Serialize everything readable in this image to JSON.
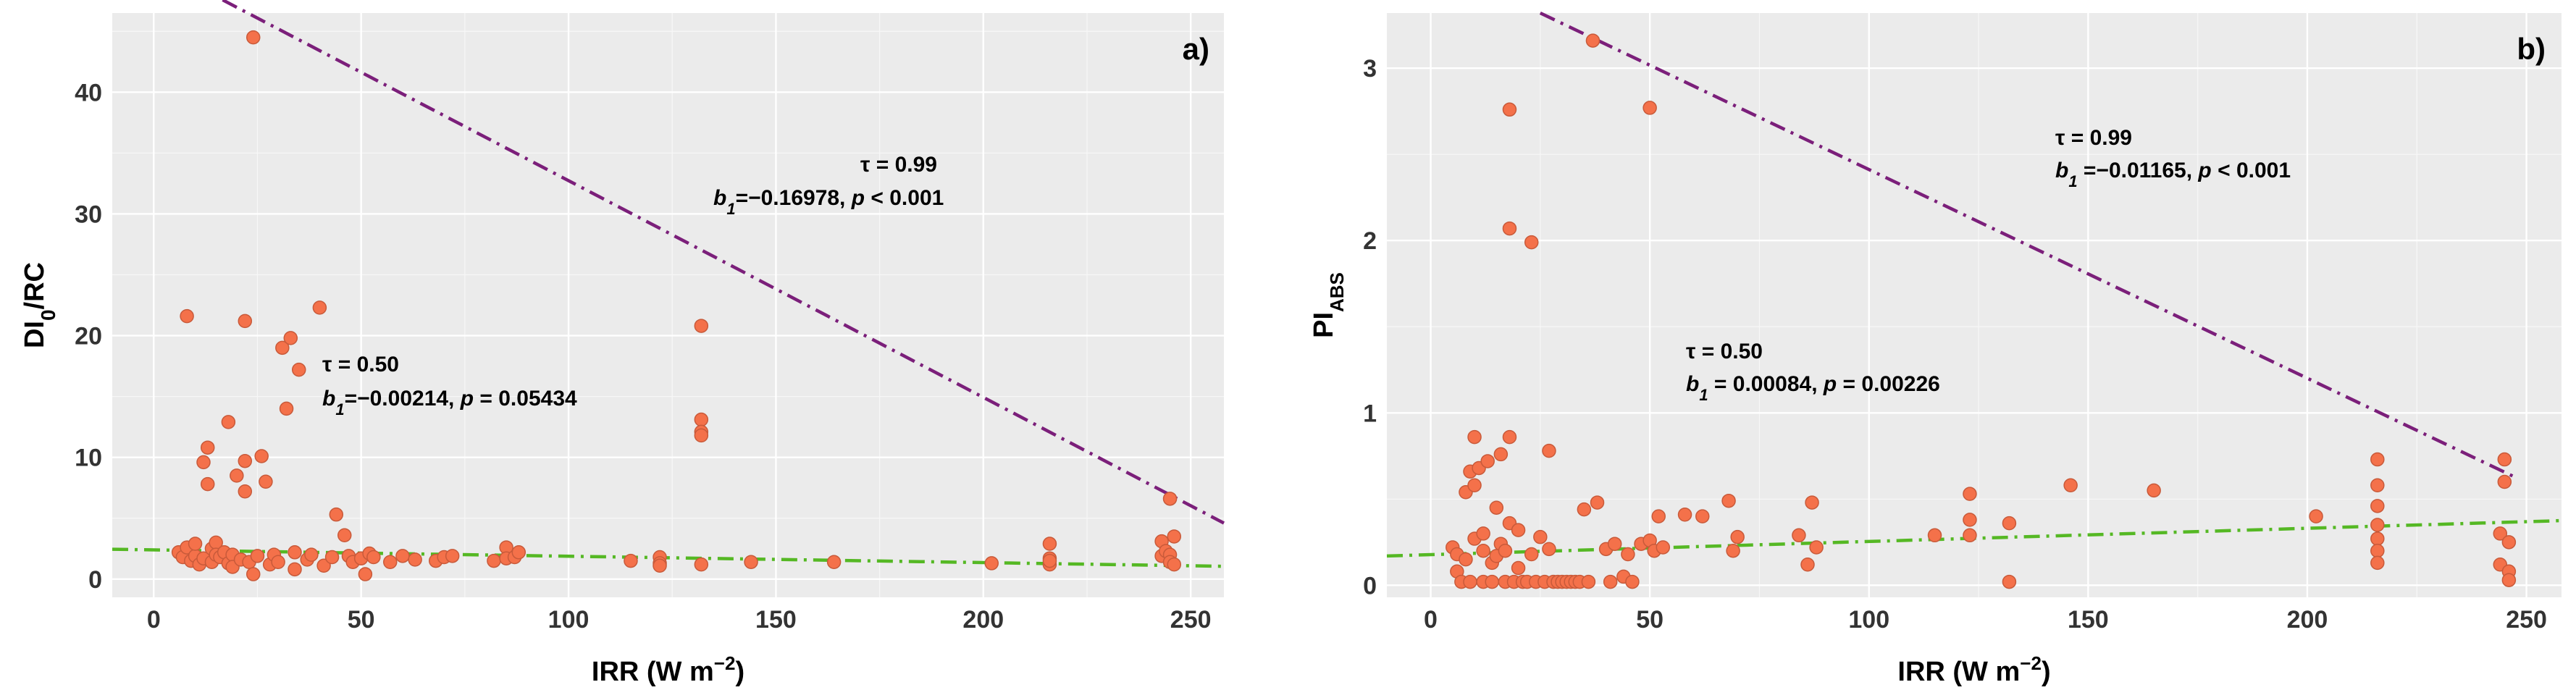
{
  "chart_data": [
    {
      "type": "scatter",
      "panel_label": "a)",
      "xlabel_html": "IRR (W m<tspan baseline-shift=\"super\" font-size=\"26\">−2</tspan>)",
      "xlabel": "IRR (W m−2)",
      "ylabel": "DI0/RC",
      "xlim": [
        -10,
        258
      ],
      "ylim": [
        -1.5,
        46.5
      ],
      "xticks": [
        0,
        50,
        100,
        150,
        200,
        250
      ],
      "yticks": [
        0,
        10,
        20,
        30,
        40
      ],
      "tau_high": {
        "label": "τ = 0.99",
        "coef_text": "=−0.16978, ",
        "p_text": " < 0.001",
        "line": {
          "x0": 3,
          "y0": 50.0,
          "x1": 258,
          "y1": 4.6,
          "color": "#7b1f7a"
        }
      },
      "tau_mid": {
        "label": "τ = 0.50",
        "coef_text": "=−0.00214, ",
        "p_text": " = 0.05434",
        "line": {
          "x0": -10,
          "y0": 2.45,
          "x1": 258,
          "y1": 1.05,
          "color": "#55b824"
        }
      },
      "points": [
        [
          6,
          2.2
        ],
        [
          7,
          1.8
        ],
        [
          8,
          21.6
        ],
        [
          8,
          2.6
        ],
        [
          9,
          1.5
        ],
        [
          10,
          1.9
        ],
        [
          10,
          2.9
        ],
        [
          11,
          1.2
        ],
        [
          12,
          1.7
        ],
        [
          12,
          9.6
        ],
        [
          13,
          10.8
        ],
        [
          13,
          7.8
        ],
        [
          14,
          2.5
        ],
        [
          14,
          1.4
        ],
        [
          15,
          3.0
        ],
        [
          15,
          2.0
        ],
        [
          16,
          1.8
        ],
        [
          17,
          2.2
        ],
        [
          18,
          12.9
        ],
        [
          18,
          1.3
        ],
        [
          19,
          2.0
        ],
        [
          19,
          1.0
        ],
        [
          20,
          8.5
        ],
        [
          21,
          1.6
        ],
        [
          22,
          7.2
        ],
        [
          22,
          9.7
        ],
        [
          22,
          21.2
        ],
        [
          23,
          1.4
        ],
        [
          24,
          44.5
        ],
        [
          24,
          0.4
        ],
        [
          25,
          1.9
        ],
        [
          26,
          10.1
        ],
        [
          27,
          8.0
        ],
        [
          28,
          1.2
        ],
        [
          29,
          2.0
        ],
        [
          30,
          1.4
        ],
        [
          31,
          19.0
        ],
        [
          32,
          14.0
        ],
        [
          33,
          19.8
        ],
        [
          34,
          2.2
        ],
        [
          34,
          0.8
        ],
        [
          35,
          17.2
        ],
        [
          37,
          1.6
        ],
        [
          38,
          2.0
        ],
        [
          40,
          22.3
        ],
        [
          41,
          1.1
        ],
        [
          43,
          1.8
        ],
        [
          44,
          5.3
        ],
        [
          46,
          3.6
        ],
        [
          47,
          1.9
        ],
        [
          48,
          1.4
        ],
        [
          50,
          1.7
        ],
        [
          51,
          0.4
        ],
        [
          52,
          2.1
        ],
        [
          53,
          1.8
        ],
        [
          57,
          1.4
        ],
        [
          60,
          1.9
        ],
        [
          63,
          1.6
        ],
        [
          68,
          1.5
        ],
        [
          70,
          1.8
        ],
        [
          72,
          1.9
        ],
        [
          82,
          1.5
        ],
        [
          85,
          2.6
        ],
        [
          85,
          1.7
        ],
        [
          87,
          1.8
        ],
        [
          88,
          2.2
        ],
        [
          115,
          1.5
        ],
        [
          122,
          1.8
        ],
        [
          122,
          1.3
        ],
        [
          122,
          1.1
        ],
        [
          132,
          20.8
        ],
        [
          132,
          13.1
        ],
        [
          132,
          12.1
        ],
        [
          132,
          11.8
        ],
        [
          132,
          1.2
        ],
        [
          144,
          1.4
        ],
        [
          164,
          1.4
        ],
        [
          202,
          1.3
        ],
        [
          216,
          2.9
        ],
        [
          216,
          1.7
        ],
        [
          216,
          1.2
        ],
        [
          216,
          1.5
        ],
        [
          243,
          3.1
        ],
        [
          243,
          1.9
        ],
        [
          244,
          2.3
        ],
        [
          245,
          2.0
        ],
        [
          245,
          6.6
        ],
        [
          245,
          1.4
        ],
        [
          246,
          1.2
        ],
        [
          246,
          3.5
        ]
      ]
    },
    {
      "type": "scatter",
      "panel_label": "b)",
      "xlabel": "IRR (W m−2)",
      "ylabel": "PIABS",
      "xlim": [
        -10,
        258
      ],
      "ylim": [
        -0.07,
        3.32
      ],
      "xticks": [
        0,
        50,
        100,
        150,
        200,
        250
      ],
      "yticks": [
        0,
        1,
        2,
        3
      ],
      "tau_high": {
        "label": "τ = 0.99",
        "coef_text": " =−0.01165, ",
        "p_text": " < 0.001",
        "line": {
          "x0": 25,
          "y0": 3.32,
          "x1": 248,
          "y1": 0.62,
          "color": "#7b1f7a"
        }
      },
      "tau_mid": {
        "label": "τ = 0.50",
        "coef_text": " = 0.00084, ",
        "p_text": " = 0.00226",
        "line": {
          "x0": -10,
          "y0": 0.17,
          "x1": 258,
          "y1": 0.375,
          "color": "#55b824"
        }
      },
      "points": [
        [
          5,
          0.22
        ],
        [
          6,
          0.08
        ],
        [
          6,
          0.18
        ],
        [
          7,
          0.02
        ],
        [
          8,
          0.15
        ],
        [
          8,
          0.54
        ],
        [
          9,
          0.66
        ],
        [
          9,
          0.02
        ],
        [
          10,
          0.58
        ],
        [
          10,
          0.27
        ],
        [
          10,
          0.86
        ],
        [
          11,
          0.68
        ],
        [
          12,
          0.02
        ],
        [
          12,
          0.3
        ],
        [
          12,
          0.2
        ],
        [
          13,
          0.72
        ],
        [
          14,
          0.13
        ],
        [
          14,
          0.02
        ],
        [
          15,
          0.17
        ],
        [
          15,
          0.45
        ],
        [
          16,
          0.24
        ],
        [
          16,
          0.76
        ],
        [
          17,
          0.02
        ],
        [
          17,
          0.2
        ],
        [
          18,
          0.36
        ],
        [
          18,
          0.86
        ],
        [
          18,
          2.76
        ],
        [
          18,
          2.07
        ],
        [
          19,
          0.02
        ],
        [
          20,
          0.32
        ],
        [
          20,
          0.1
        ],
        [
          21,
          0.02
        ],
        [
          22,
          0.02
        ],
        [
          23,
          1.99
        ],
        [
          23,
          0.18
        ],
        [
          24,
          0.02
        ],
        [
          25,
          0.28
        ],
        [
          26,
          0.02
        ],
        [
          27,
          0.78
        ],
        [
          27,
          0.21
        ],
        [
          28,
          0.02
        ],
        [
          29,
          0.02
        ],
        [
          30,
          0.02
        ],
        [
          31,
          0.02
        ],
        [
          32,
          0.02
        ],
        [
          33,
          0.02
        ],
        [
          34,
          0.02
        ],
        [
          35,
          0.44
        ],
        [
          36,
          0.02
        ],
        [
          37,
          3.16
        ],
        [
          38,
          0.48
        ],
        [
          40,
          0.21
        ],
        [
          41,
          0.02
        ],
        [
          42,
          0.24
        ],
        [
          44,
          0.05
        ],
        [
          45,
          0.18
        ],
        [
          46,
          0.02
        ],
        [
          48,
          0.24
        ],
        [
          50,
          2.77
        ],
        [
          50,
          0.26
        ],
        [
          51,
          0.2
        ],
        [
          52,
          0.4
        ],
        [
          53,
          0.22
        ],
        [
          58,
          0.41
        ],
        [
          62,
          0.4
        ],
        [
          68,
          0.49
        ],
        [
          69,
          0.2
        ],
        [
          70,
          0.28
        ],
        [
          84,
          0.29
        ],
        [
          86,
          0.12
        ],
        [
          87,
          0.48
        ],
        [
          88,
          0.22
        ],
        [
          115,
          0.29
        ],
        [
          123,
          0.53
        ],
        [
          123,
          0.38
        ],
        [
          123,
          0.29
        ],
        [
          132,
          0.02
        ],
        [
          132,
          0.36
        ],
        [
          146,
          0.58
        ],
        [
          165,
          0.55
        ],
        [
          202,
          0.4
        ],
        [
          216,
          0.73
        ],
        [
          216,
          0.58
        ],
        [
          216,
          0.46
        ],
        [
          216,
          0.35
        ],
        [
          216,
          0.27
        ],
        [
          216,
          0.2
        ],
        [
          216,
          0.13
        ],
        [
          244,
          0.3
        ],
        [
          244,
          0.12
        ],
        [
          245,
          0.73
        ],
        [
          245,
          0.6
        ],
        [
          246,
          0.08
        ],
        [
          246,
          0.25
        ],
        [
          246,
          0.03
        ]
      ]
    }
  ]
}
